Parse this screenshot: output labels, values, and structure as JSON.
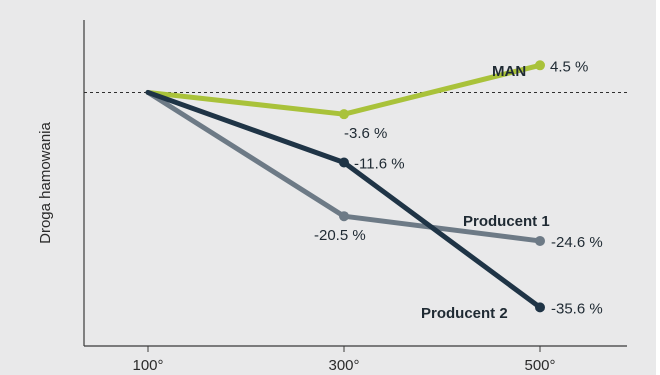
{
  "chart_data": {
    "type": "line",
    "title": "",
    "xlabel": "",
    "ylabel": "Droga hamowania",
    "x": [
      "100°",
      "300°",
      "500°"
    ],
    "ylim": [
      -42,
      12
    ],
    "reference_line": {
      "value": 0,
      "style": "dotted"
    },
    "grid": false,
    "series": [
      {
        "name": "MAN",
        "color": "#a9c23a",
        "values": [
          0,
          -3.6,
          4.5
        ],
        "labels": [
          "",
          "-3.6 %",
          "4.5 %"
        ]
      },
      {
        "name": "Producent 1",
        "color": "#6d7a86",
        "values": [
          0,
          -20.5,
          -24.6
        ],
        "labels": [
          "",
          "-20.5 %",
          "-24.6 %"
        ]
      },
      {
        "name": "Producent 2",
        "color": "#1f3446",
        "values": [
          0,
          -11.6,
          -35.6
        ],
        "labels": [
          "",
          "-11.6 %",
          "-35.6 %"
        ]
      }
    ]
  },
  "colors": {
    "background": "#e9e9ea",
    "axis": "#3a3a3a"
  }
}
